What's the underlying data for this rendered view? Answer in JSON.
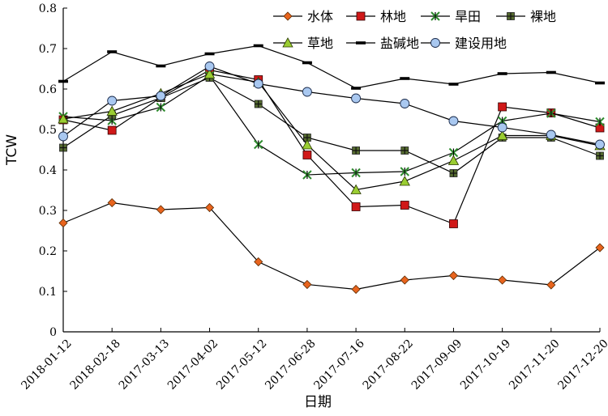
{
  "chart_data": {
    "type": "line",
    "title": "",
    "xlabel": "日期",
    "ylabel": "TCW",
    "ylim": [
      0,
      0.8
    ],
    "yticks": [
      "0",
      "0.1",
      "0.2",
      "0.3",
      "0.4",
      "0.5",
      "0.6",
      "0.7",
      "0.8"
    ],
    "grid": false,
    "legend_position": "top-right",
    "categories": [
      "2018-01-12",
      "2018-02-18",
      "2017-03-13",
      "2017-04-02",
      "2017-05-12",
      "2017-06-28",
      "2017-07-16",
      "2017-08-22",
      "2017-09-09",
      "2017-10-19",
      "2017-11-20",
      "2017-12-20"
    ],
    "series": [
      {
        "name": "水体",
        "marker": "diamond",
        "color": "#e8641e",
        "values": [
          0.269,
          0.319,
          0.302,
          0.307,
          0.173,
          0.117,
          0.105,
          0.128,
          0.139,
          0.128,
          0.116,
          0.208
        ]
      },
      {
        "name": "林地",
        "marker": "square",
        "color": "#d01818",
        "values": [
          0.524,
          0.498,
          0.579,
          0.647,
          0.623,
          0.437,
          0.309,
          0.313,
          0.267,
          0.556,
          0.541,
          0.504
        ]
      },
      {
        "name": "旱田",
        "marker": "star",
        "color": "#2e8b2e",
        "values": [
          0.532,
          0.522,
          0.555,
          0.633,
          0.463,
          0.388,
          0.393,
          0.396,
          0.443,
          0.521,
          0.54,
          0.519
        ]
      },
      {
        "name": "裸地",
        "marker": "plus-square",
        "color": "#556b2f",
        "values": [
          0.455,
          0.535,
          0.578,
          0.628,
          0.563,
          0.48,
          0.448,
          0.448,
          0.392,
          0.48,
          0.48,
          0.435
        ]
      },
      {
        "name": "草地",
        "marker": "triangle",
        "color": "#9acd32",
        "values": [
          0.526,
          0.545,
          0.589,
          0.637,
          0.617,
          0.462,
          0.351,
          0.372,
          0.423,
          0.485,
          0.485,
          0.46
        ]
      },
      {
        "name": "盐碱地",
        "marker": "dash",
        "color": "#000000",
        "values": [
          0.619,
          0.692,
          0.657,
          0.687,
          0.707,
          0.665,
          0.602,
          0.626,
          0.612,
          0.638,
          0.641,
          0.615
        ]
      },
      {
        "name": "建设用地",
        "marker": "circle",
        "color": "#a9c8f0",
        "values": [
          0.483,
          0.571,
          0.583,
          0.656,
          0.613,
          0.593,
          0.577,
          0.564,
          0.521,
          0.505,
          0.487,
          0.463
        ]
      }
    ]
  }
}
